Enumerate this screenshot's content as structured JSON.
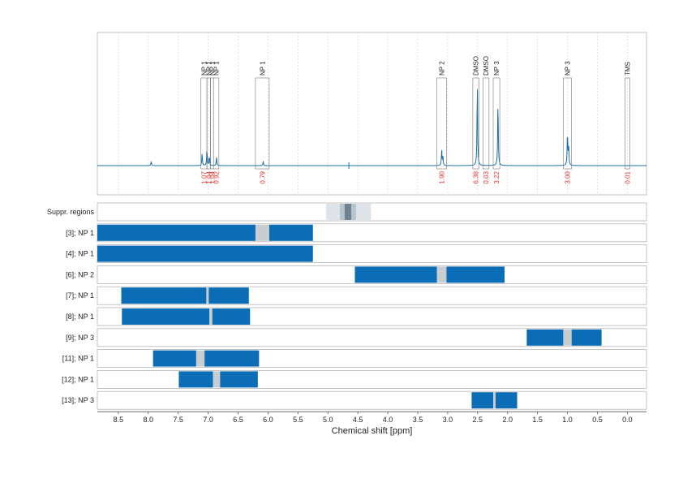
{
  "chart_data": {
    "type": "line",
    "title": "",
    "xlabel": "Chemical shift [ppm]",
    "ylabel": "",
    "xlim": [
      8.85,
      -0.32
    ],
    "x_reversed": true,
    "grid": true,
    "x_ticks": [
      "8.5",
      "8.0",
      "7.5",
      "7.0",
      "6.5",
      "6.0",
      "5.5",
      "5.0",
      "4.5",
      "4.0",
      "3.5",
      "3.0",
      "2.5",
      "2.0",
      "1.5",
      "1.0",
      "0.5",
      "0.0"
    ],
    "colors": {
      "spectrum": "#1a6fab",
      "bar": "#0a6db5",
      "gap": "#c8cdd1",
      "integral_text": "#e0302a",
      "suppr_light": "#dde3e8",
      "suppr_mid": "#b8c4cc",
      "suppr_dark": "#6e8291"
    },
    "spectrum_peaks": [
      {
        "ppm": 7.95,
        "height": 0.05
      },
      {
        "ppm": 7.1,
        "height": 0.14
      },
      {
        "ppm": 7.02,
        "height": 0.2
      },
      {
        "ppm": 6.98,
        "height": 0.11
      },
      {
        "ppm": 6.86,
        "height": 0.1
      },
      {
        "ppm": 6.08,
        "height": 0.05
      },
      {
        "ppm": 3.1,
        "height": 0.18
      },
      {
        "ppm": 3.08,
        "height": 0.1
      },
      {
        "ppm": 2.505,
        "height": 1.0
      },
      {
        "ppm": 2.16,
        "height": 0.78
      },
      {
        "ppm": 1.0,
        "height": 0.4
      },
      {
        "ppm": 0.98,
        "height": 0.25
      }
    ],
    "peak_regions": [
      {
        "label": "NP 1",
        "from": 7.12,
        "to": 7.02,
        "integral": "1.07"
      },
      {
        "label": "NP 1",
        "from": 7.02,
        "to": 6.96,
        "integral": "1.04"
      },
      {
        "label": "NP 1",
        "from": 6.96,
        "to": 6.91,
        "integral": "1.04"
      },
      {
        "label": "NP 1",
        "from": 6.91,
        "to": 6.82,
        "integral": "0.92"
      },
      {
        "label": "NP 1",
        "from": 6.21,
        "to": 5.98,
        "integral": "0.79"
      },
      {
        "label": "NP 2",
        "from": 3.18,
        "to": 3.02,
        "integral": "1.90"
      },
      {
        "label": "DMSO",
        "from": 2.58,
        "to": 2.48,
        "integral": "6.38"
      },
      {
        "label": "DMSO",
        "from": 2.41,
        "to": 2.31,
        "integral": "0.03"
      },
      {
        "label": "NP 3",
        "from": 2.24,
        "to": 2.13,
        "integral": "3.22"
      },
      {
        "label": "NP 3",
        "from": 1.07,
        "to": 0.93,
        "integral": "3.00"
      },
      {
        "label": "TMS",
        "from": 0.04,
        "to": -0.04,
        "integral": "0.01"
      }
    ],
    "suppression_regions": [
      {
        "from": 5.03,
        "to": 4.28,
        "level": "light"
      },
      {
        "from": 4.8,
        "to": 4.53,
        "level": "mid"
      },
      {
        "from": 4.72,
        "to": 4.61,
        "level": "dark"
      }
    ],
    "rows": [
      {
        "label": "[3]; NP 1",
        "bars": [
          [
            8.85,
            6.21
          ],
          [
            5.98,
            5.25
          ]
        ],
        "gaps": [
          [
            6.21,
            5.98
          ]
        ]
      },
      {
        "label": "[4]; NP 1",
        "bars": [
          [
            8.85,
            5.25
          ]
        ],
        "gaps": []
      },
      {
        "label": "[6]; NP 2",
        "bars": [
          [
            4.55,
            3.18
          ],
          [
            3.02,
            2.05
          ]
        ],
        "gaps": [
          [
            3.18,
            3.02
          ]
        ]
      },
      {
        "label": "[7]; NP 1",
        "bars": [
          [
            8.45,
            7.03
          ],
          [
            6.99,
            6.32
          ]
        ],
        "gaps": [
          [
            7.03,
            6.99
          ]
        ]
      },
      {
        "label": "[8]; NP 1",
        "bars": [
          [
            8.44,
            6.98
          ],
          [
            6.93,
            6.3
          ]
        ],
        "gaps": [
          [
            6.98,
            6.93
          ]
        ]
      },
      {
        "label": "[9]; NP 3",
        "bars": [
          [
            1.68,
            1.07
          ],
          [
            0.93,
            0.43
          ]
        ],
        "gaps": [
          [
            1.07,
            0.93
          ]
        ]
      },
      {
        "label": "[11]; NP 1",
        "bars": [
          [
            7.92,
            7.2
          ],
          [
            7.06,
            6.15
          ]
        ],
        "gaps": [
          [
            7.2,
            7.06
          ]
        ]
      },
      {
        "label": "[12]; NP 1",
        "bars": [
          [
            7.49,
            6.92
          ],
          [
            6.8,
            6.17
          ]
        ],
        "gaps": [
          [
            6.92,
            6.8
          ]
        ]
      },
      {
        "label": "[13]; NP 3",
        "bars": [
          [
            2.6,
            2.24
          ],
          [
            2.2,
            1.84
          ]
        ],
        "gaps": [
          [
            2.24,
            2.2
          ]
        ]
      }
    ],
    "suppression_row_label": "Suppr. regions"
  }
}
